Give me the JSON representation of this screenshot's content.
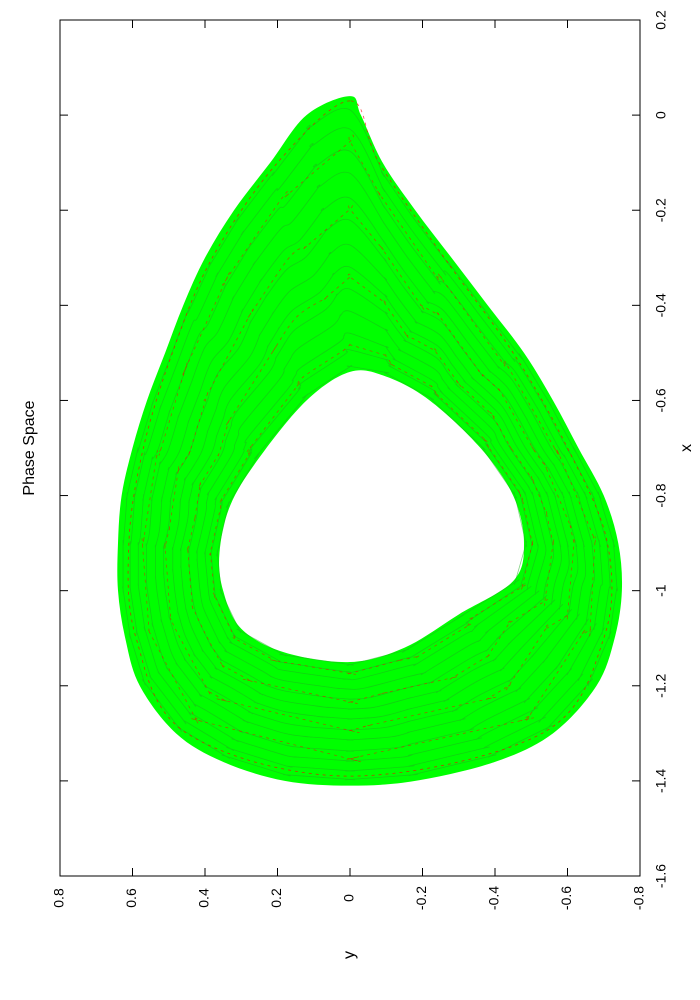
{
  "chart_data": {
    "type": "line",
    "title": "Phase Space",
    "xlabel": "x",
    "ylabel": "y",
    "xlim": [
      -1.6,
      0.2
    ],
    "ylim": [
      -0.8,
      0.8
    ],
    "x_ticks": [
      -1.6,
      -1.4,
      -1.2,
      -1,
      -0.8,
      -0.6,
      -0.4,
      -0.2,
      0,
      0.2
    ],
    "x_tick_labels": [
      "-1.6",
      "-1.4",
      "-1.2",
      "-1",
      "-0.8",
      "-0.6",
      "-0.4",
      "-0.2",
      "0",
      "0.2"
    ],
    "y_ticks": [
      -0.8,
      -0.6,
      -0.4,
      -0.2,
      0,
      0.2,
      0.4,
      0.6,
      0.8
    ],
    "y_tick_labels": [
      "-0.8",
      "-0.6",
      "-0.4",
      "-0.2",
      "0",
      "0.2",
      "0.4",
      "0.6",
      "0.8"
    ],
    "grid": false,
    "orientation": "rotated 90 degrees counter-clockwise",
    "colors": {
      "primary": "#00ff00",
      "secondary": "#ff0000",
      "axes": "#000000"
    },
    "series": [
      {
        "style": "solid",
        "color": "#00ff00",
        "outer_envelope": [
          [
            0.04,
            0.0
          ],
          [
            0.0,
            0.12
          ],
          [
            -0.1,
            0.22
          ],
          [
            -0.2,
            0.32
          ],
          [
            -0.3,
            0.4
          ],
          [
            -0.4,
            0.46
          ],
          [
            -0.5,
            0.51
          ],
          [
            -0.6,
            0.56
          ],
          [
            -0.7,
            0.6
          ],
          [
            -0.8,
            0.63
          ],
          [
            -0.9,
            0.64
          ],
          [
            -1.0,
            0.64
          ],
          [
            -1.1,
            0.62
          ],
          [
            -1.2,
            0.58
          ],
          [
            -1.3,
            0.48
          ],
          [
            -1.36,
            0.35
          ],
          [
            -1.4,
            0.18
          ],
          [
            -1.41,
            0.0
          ],
          [
            -1.4,
            -0.18
          ],
          [
            -1.36,
            -0.4
          ],
          [
            -1.3,
            -0.56
          ],
          [
            -1.2,
            -0.68
          ],
          [
            -1.1,
            -0.73
          ],
          [
            -1.0,
            -0.75
          ],
          [
            -0.9,
            -0.74
          ],
          [
            -0.8,
            -0.7
          ],
          [
            -0.7,
            -0.63
          ],
          [
            -0.6,
            -0.56
          ],
          [
            -0.5,
            -0.48
          ],
          [
            -0.4,
            -0.38
          ],
          [
            -0.3,
            -0.28
          ],
          [
            -0.2,
            -0.18
          ],
          [
            -0.1,
            -0.09
          ],
          [
            0.0,
            -0.03
          ],
          [
            0.04,
            0.0
          ]
        ],
        "inner_hole": [
          [
            -0.54,
            0.0
          ],
          [
            -0.6,
            0.12
          ],
          [
            -0.72,
            0.25
          ],
          [
            -0.82,
            0.33
          ],
          [
            -0.92,
            0.36
          ],
          [
            -1.0,
            0.35
          ],
          [
            -1.08,
            0.3
          ],
          [
            -1.13,
            0.18
          ],
          [
            -1.15,
            0.0
          ],
          [
            -1.12,
            -0.15
          ],
          [
            -1.05,
            -0.3
          ],
          [
            -0.98,
            -0.45
          ],
          [
            -0.9,
            -0.48
          ],
          [
            -0.8,
            -0.45
          ],
          [
            -0.7,
            -0.36
          ],
          [
            -0.6,
            -0.22
          ],
          [
            -0.55,
            -0.1
          ],
          [
            -0.54,
            0.0
          ]
        ]
      },
      {
        "style": "dashed",
        "color": "#ff0000",
        "outer_envelope": [
          [
            0.03,
            0.0
          ],
          [
            -0.1,
            0.2
          ],
          [
            -0.3,
            0.38
          ],
          [
            -0.5,
            0.49
          ],
          [
            -0.7,
            0.57
          ],
          [
            -0.9,
            0.61
          ],
          [
            -1.1,
            0.59
          ],
          [
            -1.3,
            0.45
          ],
          [
            -1.39,
            0.0
          ],
          [
            -1.3,
            -0.53
          ],
          [
            -1.1,
            -0.7
          ],
          [
            -0.9,
            -0.71
          ],
          [
            -0.7,
            -0.6
          ],
          [
            -0.5,
            -0.45
          ],
          [
            -0.3,
            -0.26
          ],
          [
            -0.1,
            -0.08
          ],
          [
            0.03,
            0.0
          ]
        ]
      }
    ]
  }
}
